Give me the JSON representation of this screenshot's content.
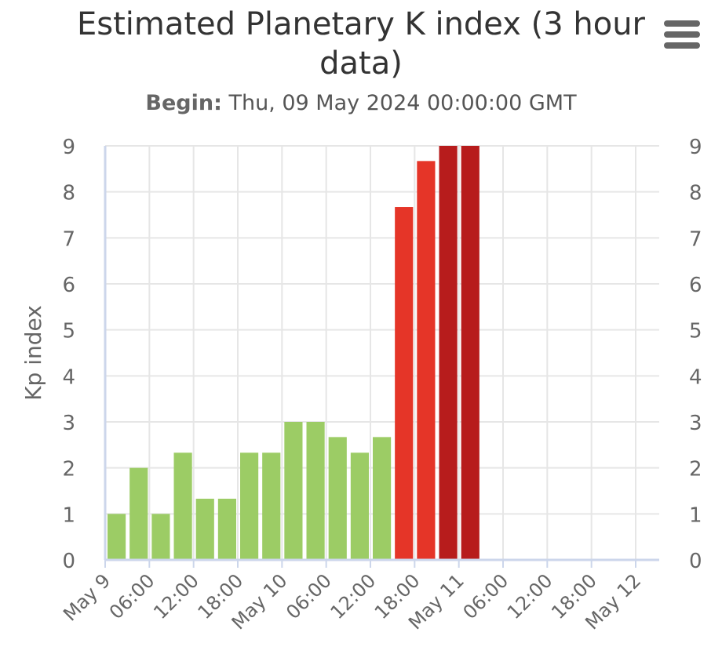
{
  "header": {
    "title": "Estimated Planetary K index (3 hour data)",
    "subtitle_label": "Begin:",
    "subtitle_value": " Thu, 09 May 2024 00:00:00 GMT"
  },
  "toolbar": {
    "menu_icon": "hamburger-menu-icon"
  },
  "chart_data": {
    "type": "bar",
    "title": "Estimated Planetary K index (3 hour data)",
    "subtitle": "Begin: Thu, 09 May 2024 00:00:00 GMT",
    "ylabel": "Kp index",
    "xlabel": "",
    "ylim": [
      0,
      9
    ],
    "yticks": [
      0,
      1,
      2,
      3,
      4,
      5,
      6,
      7,
      8,
      9
    ],
    "y_axis_right": true,
    "grid": true,
    "x_range": [
      "2024-05-09 00:00",
      "2024-05-12 00:00"
    ],
    "x_tick_labels": [
      "May 9",
      "06:00",
      "12:00",
      "18:00",
      "May 10",
      "06:00",
      "12:00",
      "18:00",
      "May 11",
      "06:00",
      "12:00",
      "18:00",
      "May 12"
    ],
    "bar_interval": "3 hours",
    "categories": [
      "2024-05-09 00:00",
      "2024-05-09 03:00",
      "2024-05-09 06:00",
      "2024-05-09 09:00",
      "2024-05-09 12:00",
      "2024-05-09 15:00",
      "2024-05-09 18:00",
      "2024-05-09 21:00",
      "2024-05-10 00:00",
      "2024-05-10 03:00",
      "2024-05-10 06:00",
      "2024-05-10 09:00",
      "2024-05-10 12:00",
      "2024-05-10 15:00",
      "2024-05-10 18:00",
      "2024-05-10 21:00",
      "2024-05-11 00:00"
    ],
    "values": [
      1.0,
      2.0,
      1.0,
      2.33,
      1.33,
      1.33,
      2.33,
      2.33,
      3.0,
      3.0,
      2.67,
      2.33,
      2.67,
      7.67,
      8.67,
      9.0,
      9.0
    ],
    "colors": {
      "quiet": "#9ccc65",
      "storm": "#e53528",
      "extreme": "#b71c1c",
      "grid": "#e6e6e6",
      "axis": "#ccd6eb",
      "text": "#666666"
    },
    "color_thresholds": {
      "storm_min": 5,
      "extreme_min": 9
    }
  }
}
